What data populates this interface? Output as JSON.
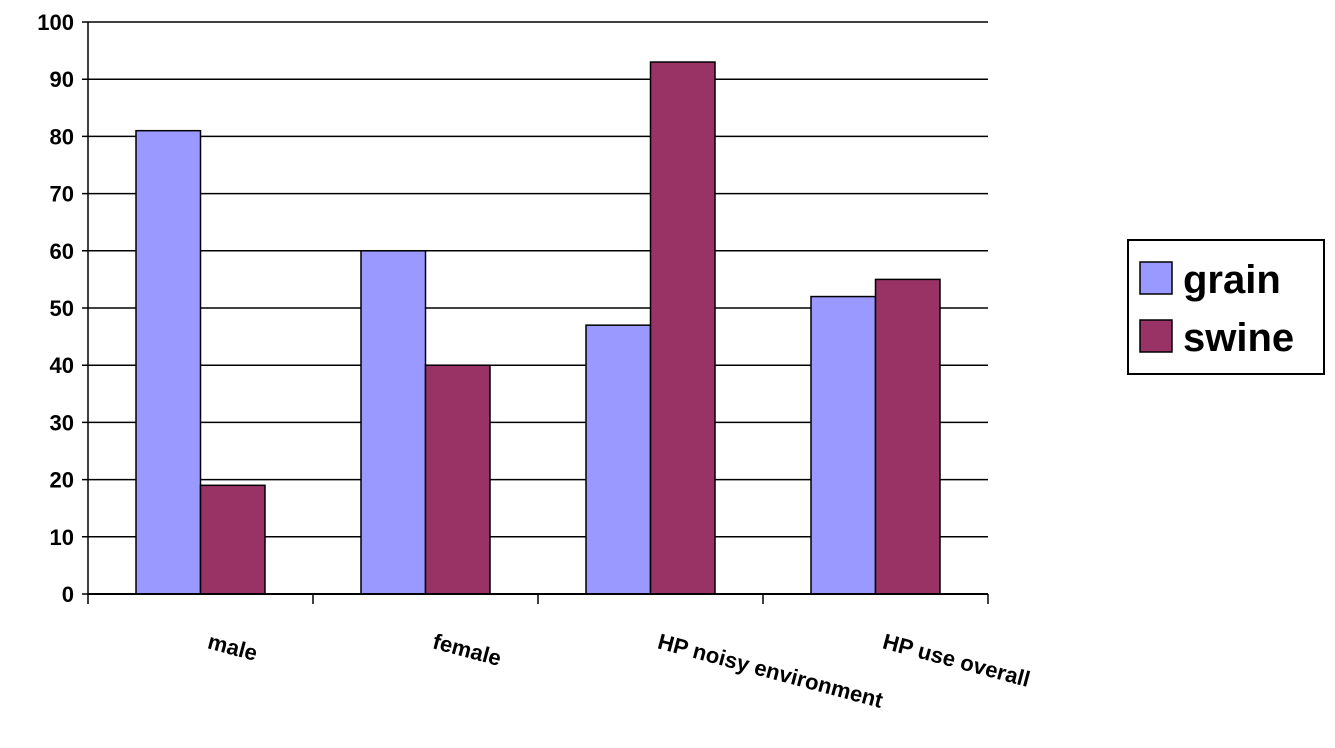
{
  "chart_data": {
    "type": "bar",
    "categories": [
      "male",
      "female",
      "HP noisy environment",
      "HP use overall"
    ],
    "series": [
      {
        "name": "grain",
        "color": "#9999ff",
        "values": [
          81,
          60,
          47,
          52
        ]
      },
      {
        "name": "swine",
        "color": "#993366",
        "values": [
          19,
          40,
          93,
          55
        ]
      }
    ],
    "ylim": [
      0,
      100
    ],
    "yticks": [
      0,
      10,
      20,
      30,
      40,
      50,
      60,
      70,
      80,
      90,
      100
    ],
    "grid": true,
    "legend": "right"
  }
}
